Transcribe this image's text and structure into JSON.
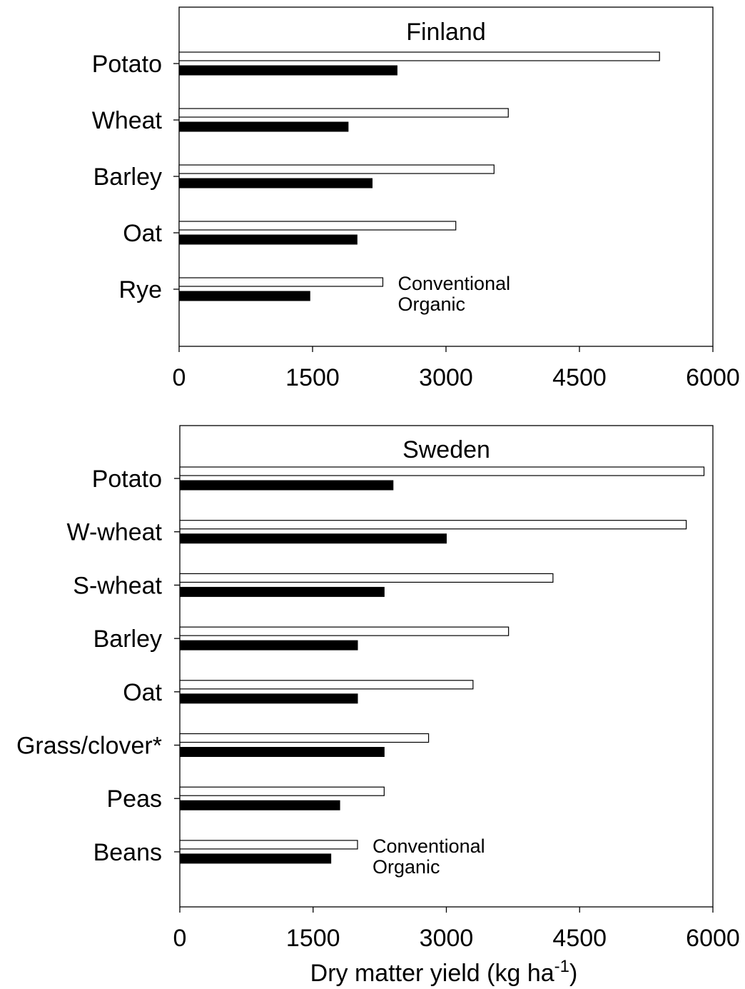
{
  "figure": {
    "xlabel": "Dry matter yield (kg ha",
    "xlabel_sup": "-1",
    "xlabel_end": ")"
  },
  "colors": {
    "conventional": "#ffffff",
    "organic": "#000000",
    "axis": "#000000"
  },
  "chart_data": [
    {
      "type": "bar",
      "orientation": "horizontal",
      "title": "Finland",
      "categories": [
        "Potato",
        "Wheat",
        "Barley",
        "Oat",
        "Rye"
      ],
      "series": [
        {
          "name": "Conventional",
          "values": [
            5400,
            3700,
            3540,
            3110,
            2290
          ]
        },
        {
          "name": "Organic",
          "values": [
            2450,
            1900,
            2170,
            2000,
            1470
          ]
        }
      ],
      "xlim": [
        0,
        6000
      ],
      "xticks": [
        "0",
        "1500",
        "3000",
        "4500",
        "6000"
      ],
      "legend": {
        "placement": "beside-last-category",
        "labels": [
          "Conventional",
          "Organic"
        ]
      },
      "grid": false
    },
    {
      "type": "bar",
      "orientation": "horizontal",
      "title": "Sweden",
      "categories": [
        "Potato",
        "W-wheat",
        "S-wheat",
        "Barley",
        "Oat",
        "Grass/clover*",
        "Peas",
        "Beans"
      ],
      "series": [
        {
          "name": "Conventional",
          "values": [
            5900,
            5700,
            4200,
            3700,
            3300,
            2800,
            2300,
            2000
          ]
        },
        {
          "name": "Organic",
          "values": [
            2400,
            3000,
            2300,
            2000,
            2000,
            2300,
            1800,
            1700
          ]
        }
      ],
      "xlim": [
        0,
        6000
      ],
      "xticks": [
        "0",
        "1500",
        "3000",
        "4500",
        "6000"
      ],
      "legend": {
        "placement": "beside-last-category",
        "labels": [
          "Conventional",
          "Organic"
        ]
      },
      "grid": false
    }
  ]
}
